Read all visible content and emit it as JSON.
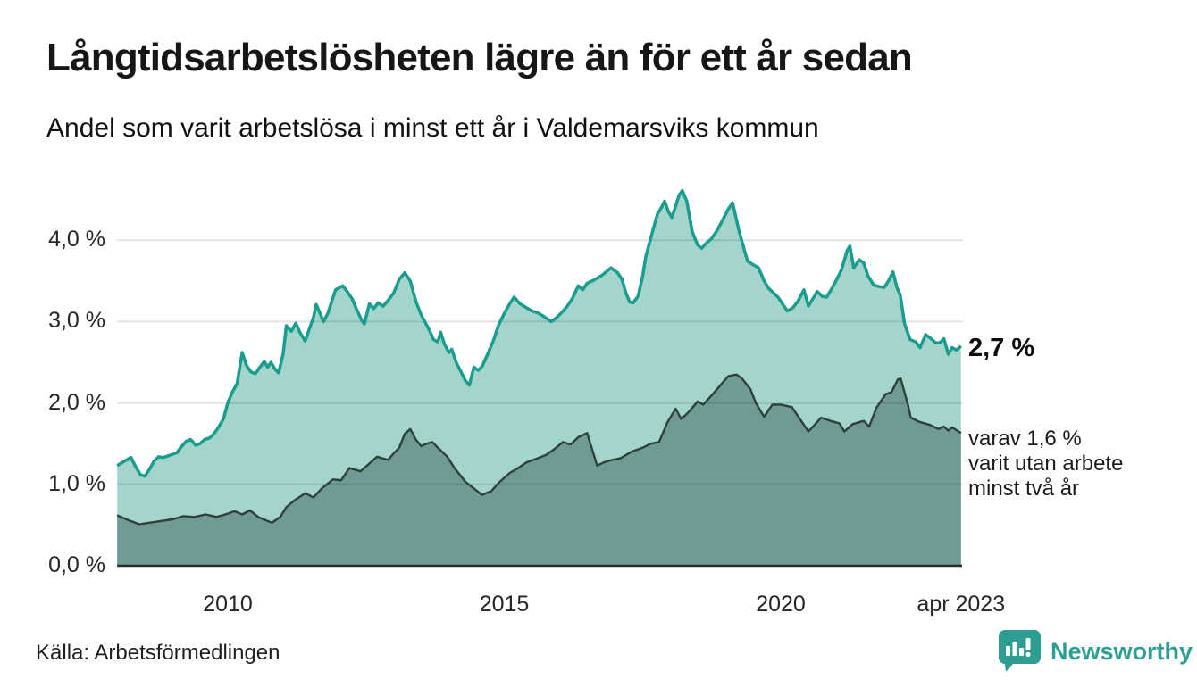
{
  "title": "Långtidsarbetslösheten lägre än för ett år sedan",
  "subtitle": "Andel som varit arbetslösa i minst ett år i Valdemarsviks kommun",
  "source": "Källa: Arbetsförmedlingen",
  "branding": {
    "name": "Newsworthy",
    "color": "#2f9e92",
    "icon": "speech-bubble-bar-chart-icon"
  },
  "annotations": {
    "end_value_label": "2,7 %",
    "secondary_label_lines": [
      "varav 1,6 %",
      "varit utan arbete",
      "minst två år"
    ]
  },
  "colors": {
    "series1_stroke": "#1a9c8e",
    "series1_fill": "#a3d5cd",
    "series2_stroke": "#2f403c",
    "series2_fill": "#6f9b94",
    "gridline": "rgba(0,0,0,0.11)",
    "baseline": "#2a2a2a"
  },
  "chart_data": {
    "type": "area",
    "title": "Långtidsarbetslösheten lägre än för ett år sedan",
    "subtitle": "Andel som varit arbetslösa i minst ett år i Valdemarsviks kommun",
    "unit": "%",
    "xlim": [
      2008.0,
      2023.26
    ],
    "ylim": [
      0,
      4.75
    ],
    "grid": "horizontal",
    "x_ticks": [
      {
        "label": "2010",
        "year": 2010
      },
      {
        "label": "2015",
        "year": 2015
      },
      {
        "label": "2020",
        "year": 2020
      },
      {
        "label": "apr 2023",
        "year": 2023.26
      }
    ],
    "y_ticks": [
      {
        "label": "0,0 %",
        "value": 0
      },
      {
        "label": "1,0 %",
        "value": 1
      },
      {
        "label": "2,0 %",
        "value": 2
      },
      {
        "label": "3,0 %",
        "value": 3
      },
      {
        "label": "4,0 %",
        "value": 4
      }
    ],
    "series": [
      {
        "name": "andel arbetslösa minst ett år",
        "end_value": 2.7,
        "points": [
          [
            2008.0,
            1.23
          ],
          [
            2008.17,
            1.3
          ],
          [
            2008.25,
            1.33
          ],
          [
            2008.33,
            1.22
          ],
          [
            2008.42,
            1.12
          ],
          [
            2008.5,
            1.1
          ],
          [
            2008.58,
            1.18
          ],
          [
            2008.67,
            1.29
          ],
          [
            2008.75,
            1.34
          ],
          [
            2008.83,
            1.33
          ],
          [
            2008.92,
            1.35
          ],
          [
            2009.0,
            1.37
          ],
          [
            2009.08,
            1.39
          ],
          [
            2009.17,
            1.47
          ],
          [
            2009.25,
            1.53
          ],
          [
            2009.33,
            1.55
          ],
          [
            2009.42,
            1.48
          ],
          [
            2009.5,
            1.5
          ],
          [
            2009.58,
            1.55
          ],
          [
            2009.67,
            1.57
          ],
          [
            2009.75,
            1.62
          ],
          [
            2009.83,
            1.7
          ],
          [
            2009.92,
            1.8
          ],
          [
            2010.0,
            2.0
          ],
          [
            2010.08,
            2.13
          ],
          [
            2010.17,
            2.24
          ],
          [
            2010.26,
            2.62
          ],
          [
            2010.34,
            2.46
          ],
          [
            2010.42,
            2.38
          ],
          [
            2010.5,
            2.36
          ],
          [
            2010.58,
            2.44
          ],
          [
            2010.66,
            2.51
          ],
          [
            2010.72,
            2.44
          ],
          [
            2010.78,
            2.5
          ],
          [
            2010.85,
            2.42
          ],
          [
            2010.92,
            2.37
          ],
          [
            2011.0,
            2.6
          ],
          [
            2011.06,
            2.95
          ],
          [
            2011.15,
            2.88
          ],
          [
            2011.23,
            2.98
          ],
          [
            2011.31,
            2.86
          ],
          [
            2011.4,
            2.76
          ],
          [
            2011.47,
            2.9
          ],
          [
            2011.55,
            3.05
          ],
          [
            2011.6,
            3.21
          ],
          [
            2011.67,
            3.1
          ],
          [
            2011.73,
            3.0
          ],
          [
            2011.81,
            3.1
          ],
          [
            2011.88,
            3.25
          ],
          [
            2011.95,
            3.39
          ],
          [
            2012.08,
            3.44
          ],
          [
            2012.17,
            3.36
          ],
          [
            2012.25,
            3.28
          ],
          [
            2012.33,
            3.15
          ],
          [
            2012.42,
            3.02
          ],
          [
            2012.47,
            2.97
          ],
          [
            2012.56,
            3.22
          ],
          [
            2012.64,
            3.16
          ],
          [
            2012.72,
            3.23
          ],
          [
            2012.81,
            3.19
          ],
          [
            2012.9,
            3.26
          ],
          [
            2013.0,
            3.35
          ],
          [
            2013.1,
            3.52
          ],
          [
            2013.2,
            3.6
          ],
          [
            2013.3,
            3.5
          ],
          [
            2013.4,
            3.25
          ],
          [
            2013.5,
            3.08
          ],
          [
            2013.65,
            2.89
          ],
          [
            2013.72,
            2.78
          ],
          [
            2013.8,
            2.75
          ],
          [
            2013.85,
            2.87
          ],
          [
            2013.92,
            2.72
          ],
          [
            2014.0,
            2.62
          ],
          [
            2014.05,
            2.66
          ],
          [
            2014.13,
            2.5
          ],
          [
            2014.22,
            2.38
          ],
          [
            2014.3,
            2.27
          ],
          [
            2014.37,
            2.22
          ],
          [
            2014.45,
            2.44
          ],
          [
            2014.53,
            2.4
          ],
          [
            2014.6,
            2.45
          ],
          [
            2014.7,
            2.6
          ],
          [
            2014.8,
            2.76
          ],
          [
            2014.9,
            2.96
          ],
          [
            2015.0,
            3.1
          ],
          [
            2015.1,
            3.22
          ],
          [
            2015.18,
            3.3
          ],
          [
            2015.28,
            3.22
          ],
          [
            2015.4,
            3.17
          ],
          [
            2015.5,
            3.13
          ],
          [
            2015.6,
            3.11
          ],
          [
            2015.72,
            3.06
          ],
          [
            2015.85,
            3.0
          ],
          [
            2015.95,
            3.05
          ],
          [
            2016.05,
            3.12
          ],
          [
            2016.15,
            3.2
          ],
          [
            2016.23,
            3.28
          ],
          [
            2016.34,
            3.44
          ],
          [
            2016.42,
            3.39
          ],
          [
            2016.5,
            3.47
          ],
          [
            2016.62,
            3.51
          ],
          [
            2016.75,
            3.56
          ],
          [
            2016.93,
            3.66
          ],
          [
            2017.05,
            3.6
          ],
          [
            2017.13,
            3.52
          ],
          [
            2017.2,
            3.35
          ],
          [
            2017.27,
            3.24
          ],
          [
            2017.33,
            3.23
          ],
          [
            2017.42,
            3.31
          ],
          [
            2017.5,
            3.55
          ],
          [
            2017.56,
            3.8
          ],
          [
            2017.64,
            4.0
          ],
          [
            2017.7,
            4.15
          ],
          [
            2017.77,
            4.32
          ],
          [
            2017.85,
            4.41
          ],
          [
            2017.9,
            4.48
          ],
          [
            2017.97,
            4.35
          ],
          [
            2018.03,
            4.28
          ],
          [
            2018.1,
            4.42
          ],
          [
            2018.16,
            4.55
          ],
          [
            2018.22,
            4.61
          ],
          [
            2018.3,
            4.48
          ],
          [
            2018.4,
            4.1
          ],
          [
            2018.5,
            3.94
          ],
          [
            2018.57,
            3.9
          ],
          [
            2018.65,
            3.96
          ],
          [
            2018.75,
            4.02
          ],
          [
            2018.85,
            4.12
          ],
          [
            2018.95,
            4.25
          ],
          [
            2019.05,
            4.38
          ],
          [
            2019.13,
            4.46
          ],
          [
            2019.25,
            4.1
          ],
          [
            2019.4,
            3.74
          ],
          [
            2019.5,
            3.7
          ],
          [
            2019.6,
            3.66
          ],
          [
            2019.7,
            3.5
          ],
          [
            2019.78,
            3.41
          ],
          [
            2019.87,
            3.35
          ],
          [
            2019.95,
            3.3
          ],
          [
            2020.05,
            3.2
          ],
          [
            2020.12,
            3.13
          ],
          [
            2020.22,
            3.17
          ],
          [
            2020.32,
            3.26
          ],
          [
            2020.42,
            3.39
          ],
          [
            2020.5,
            3.19
          ],
          [
            2020.58,
            3.28
          ],
          [
            2020.66,
            3.37
          ],
          [
            2020.75,
            3.31
          ],
          [
            2020.83,
            3.3
          ],
          [
            2020.92,
            3.4
          ],
          [
            2021.0,
            3.5
          ],
          [
            2021.1,
            3.64
          ],
          [
            2021.2,
            3.87
          ],
          [
            2021.25,
            3.93
          ],
          [
            2021.32,
            3.66
          ],
          [
            2021.42,
            3.76
          ],
          [
            2021.5,
            3.72
          ],
          [
            2021.58,
            3.56
          ],
          [
            2021.68,
            3.45
          ],
          [
            2021.78,
            3.43
          ],
          [
            2021.87,
            3.42
          ],
          [
            2021.95,
            3.5
          ],
          [
            2022.03,
            3.61
          ],
          [
            2022.1,
            3.42
          ],
          [
            2022.16,
            3.33
          ],
          [
            2022.24,
            2.97
          ],
          [
            2022.34,
            2.78
          ],
          [
            2022.44,
            2.75
          ],
          [
            2022.52,
            2.68
          ],
          [
            2022.62,
            2.84
          ],
          [
            2022.72,
            2.79
          ],
          [
            2022.8,
            2.74
          ],
          [
            2022.88,
            2.74
          ],
          [
            2022.95,
            2.79
          ],
          [
            2023.03,
            2.6
          ],
          [
            2023.1,
            2.68
          ],
          [
            2023.18,
            2.65
          ],
          [
            2023.26,
            2.7
          ]
        ]
      },
      {
        "name": "varav arbetslösa minst två år",
        "end_value": 1.6,
        "points": [
          [
            2008.0,
            0.62
          ],
          [
            2008.2,
            0.56
          ],
          [
            2008.4,
            0.51
          ],
          [
            2008.6,
            0.53
          ],
          [
            2008.8,
            0.55
          ],
          [
            2009.0,
            0.57
          ],
          [
            2009.2,
            0.61
          ],
          [
            2009.4,
            0.6
          ],
          [
            2009.6,
            0.63
          ],
          [
            2009.8,
            0.6
          ],
          [
            2010.0,
            0.64
          ],
          [
            2010.12,
            0.67
          ],
          [
            2010.26,
            0.63
          ],
          [
            2010.4,
            0.68
          ],
          [
            2010.55,
            0.6
          ],
          [
            2010.68,
            0.56
          ],
          [
            2010.8,
            0.53
          ],
          [
            2010.95,
            0.6
          ],
          [
            2011.06,
            0.72
          ],
          [
            2011.2,
            0.8
          ],
          [
            2011.4,
            0.89
          ],
          [
            2011.55,
            0.84
          ],
          [
            2011.7,
            0.95
          ],
          [
            2011.9,
            1.06
          ],
          [
            2012.05,
            1.05
          ],
          [
            2012.2,
            1.2
          ],
          [
            2012.4,
            1.16
          ],
          [
            2012.55,
            1.25
          ],
          [
            2012.7,
            1.34
          ],
          [
            2012.9,
            1.3
          ],
          [
            2013.0,
            1.38
          ],
          [
            2013.1,
            1.45
          ],
          [
            2013.2,
            1.62
          ],
          [
            2013.3,
            1.68
          ],
          [
            2013.4,
            1.55
          ],
          [
            2013.5,
            1.47
          ],
          [
            2013.6,
            1.5
          ],
          [
            2013.7,
            1.52
          ],
          [
            2013.8,
            1.45
          ],
          [
            2013.97,
            1.34
          ],
          [
            2014.1,
            1.2
          ],
          [
            2014.3,
            1.03
          ],
          [
            2014.45,
            0.95
          ],
          [
            2014.6,
            0.87
          ],
          [
            2014.77,
            0.92
          ],
          [
            2014.9,
            1.02
          ],
          [
            2015.1,
            1.14
          ],
          [
            2015.25,
            1.2
          ],
          [
            2015.4,
            1.27
          ],
          [
            2015.6,
            1.32
          ],
          [
            2015.75,
            1.36
          ],
          [
            2015.9,
            1.43
          ],
          [
            2016.06,
            1.52
          ],
          [
            2016.2,
            1.49
          ],
          [
            2016.34,
            1.58
          ],
          [
            2016.5,
            1.63
          ],
          [
            2016.68,
            1.23
          ],
          [
            2016.8,
            1.27
          ],
          [
            2016.95,
            1.3
          ],
          [
            2017.1,
            1.32
          ],
          [
            2017.3,
            1.4
          ],
          [
            2017.5,
            1.45
          ],
          [
            2017.65,
            1.5
          ],
          [
            2017.8,
            1.52
          ],
          [
            2017.95,
            1.76
          ],
          [
            2018.1,
            1.93
          ],
          [
            2018.2,
            1.8
          ],
          [
            2018.35,
            1.9
          ],
          [
            2018.5,
            2.02
          ],
          [
            2018.6,
            1.98
          ],
          [
            2018.8,
            2.13
          ],
          [
            2019.05,
            2.33
          ],
          [
            2019.2,
            2.35
          ],
          [
            2019.3,
            2.3
          ],
          [
            2019.45,
            2.17
          ],
          [
            2019.55,
            2.0
          ],
          [
            2019.7,
            1.83
          ],
          [
            2019.85,
            1.98
          ],
          [
            2020.0,
            1.98
          ],
          [
            2020.2,
            1.95
          ],
          [
            2020.4,
            1.75
          ],
          [
            2020.5,
            1.65
          ],
          [
            2020.6,
            1.72
          ],
          [
            2020.73,
            1.82
          ],
          [
            2020.9,
            1.78
          ],
          [
            2021.06,
            1.75
          ],
          [
            2021.15,
            1.65
          ],
          [
            2021.3,
            1.74
          ],
          [
            2021.5,
            1.78
          ],
          [
            2021.6,
            1.71
          ],
          [
            2021.73,
            1.94
          ],
          [
            2021.9,
            2.11
          ],
          [
            2022.0,
            2.13
          ],
          [
            2022.12,
            2.29
          ],
          [
            2022.17,
            2.3
          ],
          [
            2022.3,
            1.98
          ],
          [
            2022.35,
            1.82
          ],
          [
            2022.5,
            1.77
          ],
          [
            2022.7,
            1.73
          ],
          [
            2022.85,
            1.68
          ],
          [
            2022.95,
            1.71
          ],
          [
            2023.03,
            1.66
          ],
          [
            2023.1,
            1.7
          ],
          [
            2023.26,
            1.63
          ]
        ]
      }
    ]
  }
}
